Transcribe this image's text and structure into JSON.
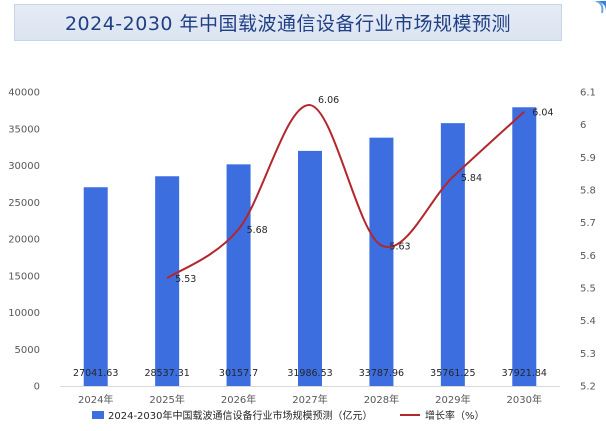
{
  "title": "2024-2030 年中国载波通信设备行业市场规模预测",
  "colors": {
    "bar": "#3c6ee0",
    "line": "#b3272c",
    "axis": "#d9d9d9",
    "banner_text": "#1f3f86"
  },
  "chart_data": {
    "type": "bar+line",
    "title": "2024-2030 年中国载波通信设备行业市场规模预测",
    "categories": [
      "2024年",
      "2025年",
      "2026年",
      "2027年",
      "2028年",
      "2029年",
      "2030年"
    ],
    "series": [
      {
        "name": "2024-2030年中国载波通信设备行业市场规模预测（亿元）",
        "type": "bar",
        "axis": "left",
        "values": [
          27041.63,
          28537.31,
          30157.7,
          31986.53,
          33787.96,
          35761.25,
          37921.84
        ],
        "labels": [
          "27041.63",
          "28537.31",
          "30157.7",
          "31986.53",
          "33787.96",
          "35761.25",
          "37921.84"
        ]
      },
      {
        "name": "增长率（%）",
        "type": "line",
        "axis": "right",
        "values": [
          null,
          5.53,
          5.68,
          6.06,
          5.63,
          5.84,
          6.04
        ],
        "labels": [
          "",
          "5.53",
          "5.68",
          "6.06",
          "5.63",
          "5.84",
          "6.04"
        ]
      }
    ],
    "y_left": {
      "min": 0,
      "max": 40000,
      "step": 5000,
      "ticks": [
        "0",
        "5000",
        "10000",
        "15000",
        "20000",
        "25000",
        "30000",
        "35000",
        "40000"
      ]
    },
    "y_right": {
      "min": 5.2,
      "max": 6.1,
      "step": 0.1,
      "ticks": [
        "5.2",
        "5.3",
        "5.4",
        "5.5",
        "5.6",
        "5.7",
        "5.8",
        "5.9",
        "6",
        "6.1"
      ]
    },
    "legend_position": "bottom",
    "grid": false
  }
}
